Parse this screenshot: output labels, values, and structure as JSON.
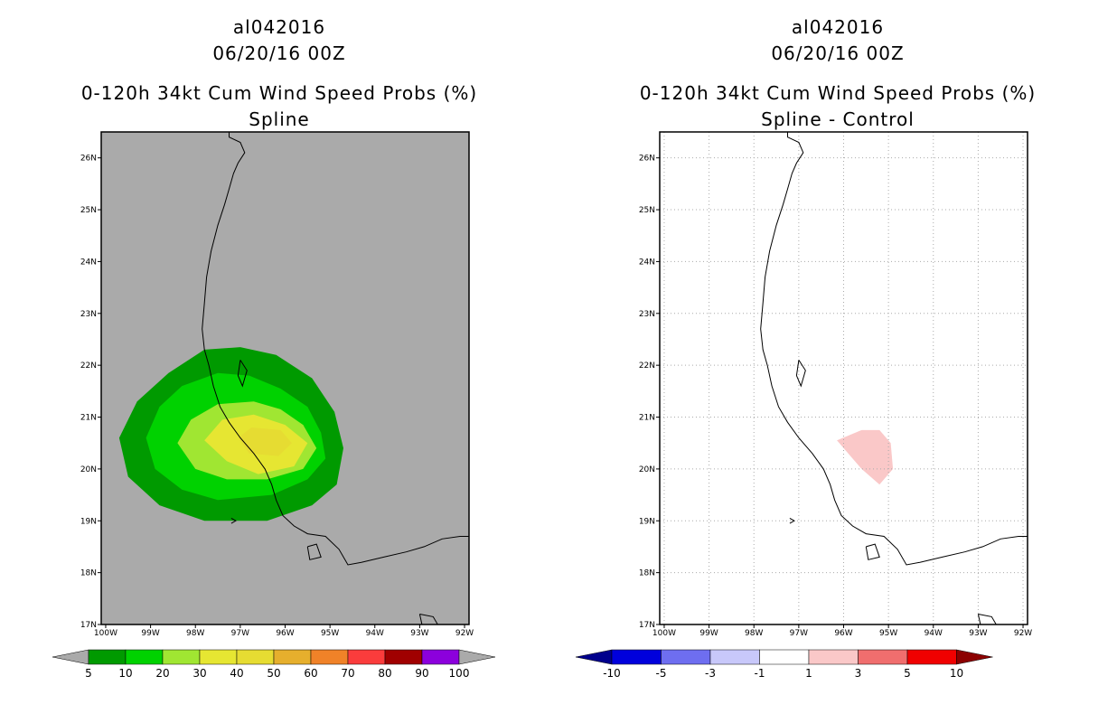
{
  "left": {
    "title_id": "al042016",
    "title_time": "06/20/16 00Z",
    "title_product": "0-120h 34kt Cum Wind Speed Probs (%)",
    "title_sub": "Spline"
  },
  "right": {
    "title_id": "al042016",
    "title_time": "06/20/16 00Z",
    "title_product": "0-120h 34kt Cum Wind Speed Probs (%)",
    "title_sub": "Spline - Control"
  },
  "chart_data": [
    {
      "type": "heatmap",
      "title": "0-120h 34kt Cum Wind Speed Probs (%) - Spline",
      "xlim": [
        -100.1,
        -91.9
      ],
      "ylim": [
        17,
        26.5
      ],
      "x_ticks": [
        -100,
        -99,
        -98,
        -97,
        -96,
        -95,
        -94,
        -93,
        -92
      ],
      "x_tick_labels": [
        "100W",
        "99W",
        "98W",
        "97W",
        "96W",
        "95W",
        "94W",
        "93W",
        "92W"
      ],
      "y_ticks": [
        17,
        18,
        19,
        20,
        21,
        22,
        23,
        24,
        25,
        26
      ],
      "y_tick_labels": [
        "17N",
        "18N",
        "19N",
        "20N",
        "21N",
        "22N",
        "23N",
        "24N",
        "25N",
        "26N"
      ],
      "grid": false,
      "background": "#aaaaaa",
      "colorbar": {
        "labels": [
          "5",
          "10",
          "20",
          "30",
          "40",
          "50",
          "60",
          "70",
          "80",
          "90",
          "100"
        ],
        "colors": [
          "#009a00",
          "#00d200",
          "#a0e632",
          "#e6e632",
          "#e6dc32",
          "#e6af2d",
          "#f08228",
          "#fa3c3c",
          "#a00000",
          "#8c00dc"
        ],
        "end_low": "#aaaaaa",
        "end_high": "#aaaaaa"
      },
      "contours": [
        {
          "level": "5-10",
          "color": "#009a00",
          "points": [
            [
              -99.7,
              20.6
            ],
            [
              -99.3,
              21.3
            ],
            [
              -98.6,
              21.85
            ],
            [
              -97.8,
              22.3
            ],
            [
              -97.0,
              22.35
            ],
            [
              -96.2,
              22.2
            ],
            [
              -95.4,
              21.75
            ],
            [
              -94.9,
              21.1
            ],
            [
              -94.7,
              20.4
            ],
            [
              -94.85,
              19.7
            ],
            [
              -95.4,
              19.3
            ],
            [
              -96.4,
              19.0
            ],
            [
              -97.8,
              19.0
            ],
            [
              -98.8,
              19.3
            ],
            [
              -99.5,
              19.85
            ]
          ]
        },
        {
          "level": "10-20",
          "color": "#00d200",
          "points": [
            [
              -99.1,
              20.6
            ],
            [
              -98.8,
              21.2
            ],
            [
              -98.3,
              21.6
            ],
            [
              -97.5,
              21.85
            ],
            [
              -96.8,
              21.8
            ],
            [
              -96.1,
              21.55
            ],
            [
              -95.5,
              21.2
            ],
            [
              -95.2,
              20.7
            ],
            [
              -95.1,
              20.2
            ],
            [
              -95.5,
              19.8
            ],
            [
              -96.3,
              19.5
            ],
            [
              -97.5,
              19.4
            ],
            [
              -98.3,
              19.6
            ],
            [
              -98.9,
              20.0
            ]
          ]
        },
        {
          "level": "20-30",
          "color": "#a0e632",
          "points": [
            [
              -98.4,
              20.5
            ],
            [
              -98.1,
              20.95
            ],
            [
              -97.5,
              21.25
            ],
            [
              -96.7,
              21.3
            ],
            [
              -96.1,
              21.15
            ],
            [
              -95.6,
              20.85
            ],
            [
              -95.3,
              20.4
            ],
            [
              -95.6,
              20.0
            ],
            [
              -96.4,
              19.8
            ],
            [
              -97.3,
              19.8
            ],
            [
              -98.0,
              20.0
            ]
          ]
        },
        {
          "level": "30-40",
          "color": "#e6e632",
          "points": [
            [
              -97.8,
              20.55
            ],
            [
              -97.4,
              20.95
            ],
            [
              -96.7,
              21.05
            ],
            [
              -96.0,
              20.85
            ],
            [
              -95.5,
              20.5
            ],
            [
              -95.8,
              20.05
            ],
            [
              -96.6,
              19.9
            ],
            [
              -97.3,
              20.15
            ]
          ]
        },
        {
          "level": "40-50",
          "color": "#e6dc32",
          "points": [
            [
              -97.05,
              20.6
            ],
            [
              -96.75,
              20.8
            ],
            [
              -96.1,
              20.75
            ],
            [
              -95.85,
              20.5
            ],
            [
              -96.15,
              20.25
            ],
            [
              -96.8,
              20.3
            ]
          ]
        }
      ]
    },
    {
      "type": "heatmap",
      "title": "0-120h 34kt Cum Wind Speed Probs (%) - Spline - Control",
      "xlim": [
        -100.1,
        -91.9
      ],
      "ylim": [
        17,
        26.5
      ],
      "x_ticks": [
        -100,
        -99,
        -98,
        -97,
        -96,
        -95,
        -94,
        -93,
        -92
      ],
      "x_tick_labels": [
        "100W",
        "99W",
        "98W",
        "97W",
        "96W",
        "95W",
        "94W",
        "93W",
        "92W"
      ],
      "y_ticks": [
        17,
        18,
        19,
        20,
        21,
        22,
        23,
        24,
        25,
        26
      ],
      "y_tick_labels": [
        "17N",
        "18N",
        "19N",
        "20N",
        "21N",
        "22N",
        "23N",
        "24N",
        "25N",
        "26N"
      ],
      "grid": true,
      "background": "#ffffff",
      "colorbar": {
        "labels": [
          "-10",
          "-5",
          "-3",
          "-1",
          "1",
          "3",
          "5",
          "10"
        ],
        "colors": [
          "#0000dc",
          "#6e6ef0",
          "#c8c8fa",
          "#ffffff",
          "#fac8c8",
          "#f06e6e",
          "#f00000"
        ],
        "end_low": "#00008c",
        "end_high": "#8c0000"
      },
      "contours": [
        {
          "level": "1-3",
          "color": "#fac8c8",
          "points": [
            [
              -96.15,
              20.55
            ],
            [
              -95.6,
              20.75
            ],
            [
              -95.2,
              20.75
            ],
            [
              -94.95,
              20.5
            ],
            [
              -94.9,
              20.0
            ],
            [
              -95.2,
              19.7
            ],
            [
              -95.6,
              20.0
            ]
          ]
        }
      ]
    }
  ]
}
